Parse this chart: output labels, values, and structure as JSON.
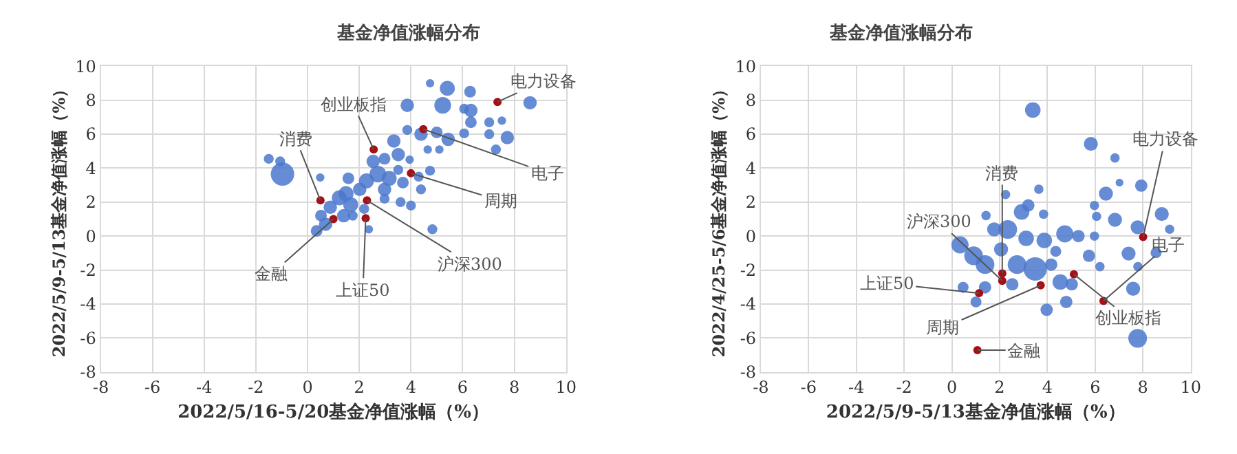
{
  "chart_data": [
    {
      "type": "bubble",
      "title": "基金净值涨幅分布",
      "xlabel": "2022/5/16-5/20基金净值涨幅（%）",
      "ylabel": "2022/5/9-5/13基金净值涨幅（%）",
      "xlim": [
        -8,
        10
      ],
      "ylim": [
        -8,
        10
      ],
      "xticks": [
        -8,
        -6,
        -4,
        -2,
        0,
        2,
        4,
        6,
        8,
        10
      ],
      "yticks": [
        -8,
        -6,
        -4,
        -2,
        0,
        2,
        4,
        6,
        8,
        10
      ],
      "grid": true,
      "relative": false,
      "series": [
        {
          "color": "#4a78cc",
          "x": [
            4.74,
            5.41,
            6.29,
            3.86,
            5.23,
            6.06,
            6.32,
            6.32,
            7.03,
            7.52,
            8.61,
            3.86,
            4.39,
            5.0,
            5.44,
            6.06,
            7.03,
            7.73,
            7.29,
            4.65,
            5.1,
            3.34,
            3.51,
            2.98,
            2.54,
            3.95,
            4.74,
            4.3,
            4.39,
            4.83,
            3.69,
            3.16,
            2.72,
            2.28,
            2.02,
            1.58,
            1.49,
            1.23,
            1.67,
            0.88,
            0.52,
            0.7,
            0.35,
            1.4,
            1.75,
            2.19,
            2.37,
            2.98,
            3.6,
            4.0,
            0.49,
            -0.97,
            -1.5,
            -1.06,
            2.98,
            3.51
          ],
          "values": [
            9.0,
            8.7,
            8.5,
            7.7,
            7.7,
            7.5,
            7.4,
            6.7,
            6.7,
            6.8,
            7.85,
            6.25,
            6.0,
            6.1,
            5.7,
            6.05,
            6.0,
            5.8,
            5.1,
            5.1,
            5.1,
            5.6,
            4.8,
            4.55,
            4.4,
            4.5,
            3.85,
            3.5,
            2.75,
            0.4,
            3.15,
            3.4,
            3.65,
            3.25,
            2.75,
            3.4,
            2.5,
            2.25,
            1.85,
            1.7,
            1.2,
            0.7,
            0.3,
            1.2,
            1.2,
            1.6,
            0.4,
            2.2,
            2.0,
            1.8,
            3.45,
            3.65,
            4.55,
            4.4,
            2.75,
            3.9
          ],
          "sizes": [
            0.13,
            0.41,
            0.25,
            0.33,
            0.51,
            0.18,
            0.33,
            0.25,
            0.18,
            0.13,
            0.33,
            0.18,
            0.33,
            0.25,
            0.33,
            0.18,
            0.18,
            0.33,
            0.18,
            0.13,
            0.13,
            0.33,
            0.33,
            0.25,
            0.33,
            0.13,
            0.18,
            0.18,
            0.18,
            0.18,
            0.25,
            0.41,
            0.51,
            0.41,
            0.33,
            0.25,
            0.41,
            0.41,
            0.41,
            0.33,
            0.25,
            0.33,
            0.25,
            0.33,
            0.18,
            0.18,
            0.13,
            0.18,
            0.18,
            0.18,
            0.13,
            1,
            0.18,
            0.18,
            0.33,
            0.18
          ]
        },
        {
          "type": "scatter",
          "color": "#a50f15",
          "x": [
            7.35,
            4.48,
            2.56,
            4.0,
            0.5,
            2.3,
            1.0,
            2.25
          ],
          "values": [
            7.9,
            6.3,
            5.1,
            3.7,
            2.1,
            2.1,
            1.0,
            1.05
          ]
        }
      ],
      "annotations": [
        {
          "text": "电力设备",
          "x": 7.35,
          "y": 7.9
        },
        {
          "text": "电子",
          "x": 4.48,
          "y": 6.3
        },
        {
          "text": "创业板指",
          "x": 2.56,
          "y": 5.1
        },
        {
          "text": "周期",
          "x": 4.0,
          "y": 3.7
        },
        {
          "text": "消费",
          "x": 0.5,
          "y": 2.1
        },
        {
          "text": "沪深300",
          "x": 2.3,
          "y": 2.1
        },
        {
          "text": "金融",
          "x": 1.0,
          "y": 1.0
        },
        {
          "text": "上证50",
          "x": 2.25,
          "y": 1.05
        }
      ]
    },
    {
      "type": "bubble",
      "title": "基金净值涨幅分布",
      "xlabel": "2022/5/9-5/13基金净值涨幅（%）",
      "ylabel": "2022/4/25-5/6基金净值涨幅（%）",
      "xlim": [
        -8,
        10
      ],
      "ylim": [
        -8,
        10
      ],
      "xticks": [
        -8,
        -6,
        -4,
        -2,
        0,
        2,
        4,
        6,
        8,
        10
      ],
      "yticks": [
        -8,
        -6,
        -4,
        -2,
        0,
        2,
        4,
        6,
        8,
        10
      ],
      "grid": true,
      "relative": false,
      "series": [
        {
          "color": "#4a78cc",
          "x": [
            3.39,
            5.82,
            6.83,
            7.02,
            7.93,
            6.45,
            5.97,
            6.83,
            6.06,
            8.79,
            9.12,
            7.78,
            7.4,
            8.55,
            7.79,
            7.59,
            7.78,
            5.74,
            6.2,
            5.97,
            4.73,
            5.3,
            4.35,
            4.54,
            5.02,
            4.79,
            3.97,
            3.64,
            3.84,
            3.2,
            2.25,
            2.92,
            1.43,
            2.34,
            1.77,
            3.11,
            3.87,
            0.34,
            0.91,
            1.39,
            3.49,
            2.73,
            2.53,
            1.39,
            0.47,
            1.01,
            2.06,
            4.16
          ],
          "values": [
            7.42,
            5.43,
            4.6,
            3.15,
            2.97,
            2.5,
            1.8,
            0.96,
            1.16,
            1.3,
            0.4,
            0.52,
            -1.03,
            -0.98,
            -1.8,
            -3.1,
            -6.02,
            -1.16,
            -1.8,
            0.0,
            0.13,
            0.0,
            -0.9,
            -2.71,
            -2.84,
            -3.88,
            -4.34,
            2.76,
            1.29,
            1.81,
            2.45,
            1.42,
            1.21,
            0.39,
            0.39,
            -0.13,
            -0.26,
            -0.52,
            -1.16,
            -1.68,
            -1.94,
            -1.68,
            -2.84,
            -3.02,
            -3.02,
            -3.88,
            -0.78,
            -1.68
          ],
          "sizes": [
            0.44,
            0.36,
            0.16,
            0.11,
            0.28,
            0.36,
            0.16,
            0.36,
            0.16,
            0.36,
            0.16,
            0.36,
            0.36,
            0.22,
            0.16,
            0.36,
            0.64,
            0.28,
            0.16,
            0.16,
            0.54,
            0.28,
            0.22,
            0.44,
            0.28,
            0.28,
            0.28,
            0.16,
            0.16,
            0.28,
            0.16,
            0.44,
            0.16,
            0.64,
            0.36,
            0.44,
            0.44,
            0.54,
            0.64,
            0.64,
            1,
            0.64,
            0.28,
            0.28,
            0.22,
            0.22,
            0.36,
            0.28
          ]
        },
        {
          "type": "scatter",
          "color": "#a50f15",
          "x": [
            8.01,
            6.35,
            5.11,
            3.72,
            2.11,
            2.11,
            1.14,
            1.07
          ],
          "values": [
            -0.05,
            -3.82,
            -2.25,
            -2.9,
            -2.2,
            -2.64,
            -3.36,
            -6.72
          ]
        }
      ],
      "annotations": [
        {
          "text": "电力设备",
          "x": 8.01,
          "y": -0.05
        },
        {
          "text": "电子",
          "x": 6.35,
          "y": -3.82
        },
        {
          "text": "创业板指",
          "x": 5.11,
          "y": -2.25
        },
        {
          "text": "周期",
          "x": 3.72,
          "y": -2.9
        },
        {
          "text": "消费",
          "x": 2.11,
          "y": -2.2
        },
        {
          "text": "沪深300",
          "x": 2.11,
          "y": -2.64
        },
        {
          "text": "上证50",
          "x": 1.14,
          "y": -3.36
        },
        {
          "text": "金融",
          "x": 1.07,
          "y": -6.72
        }
      ]
    }
  ]
}
